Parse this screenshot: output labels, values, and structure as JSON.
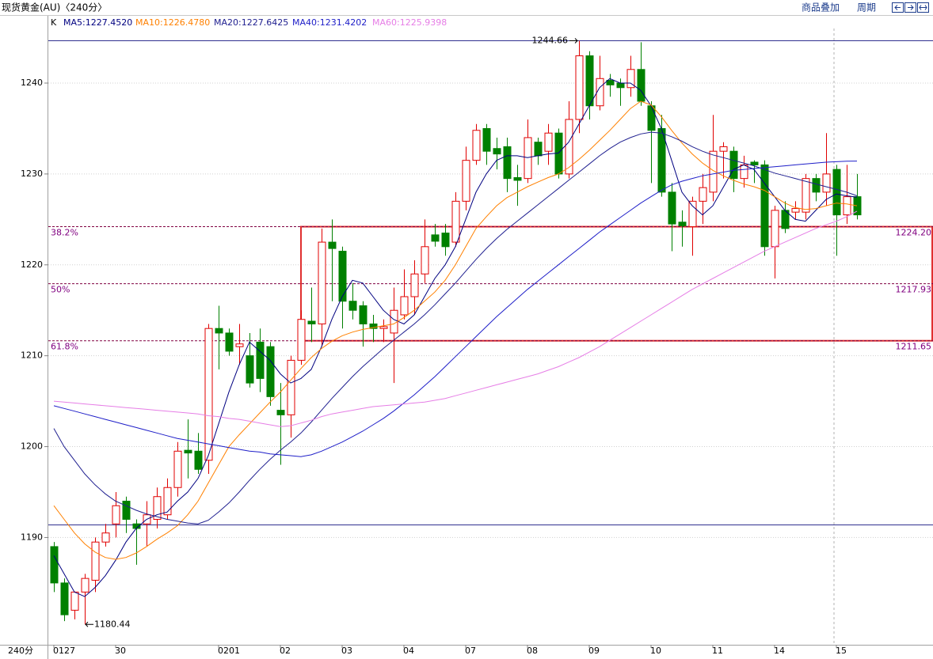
{
  "header": {
    "title": "现货黄金(AU)〈240分〉",
    "links": [
      "商品叠加",
      "周期"
    ]
  },
  "chart_data": {
    "type": "candlestick",
    "legend_prefix": "K",
    "period_label": "240分",
    "categories": [
      "0127",
      null,
      null,
      null,
      null,
      null,
      "30",
      null,
      null,
      null,
      null,
      null,
      null,
      null,
      null,
      null,
      "0201",
      null,
      null,
      null,
      null,
      null,
      "02",
      null,
      null,
      null,
      null,
      null,
      "03",
      null,
      null,
      null,
      null,
      null,
      "04",
      null,
      null,
      null,
      null,
      null,
      "07",
      null,
      null,
      null,
      null,
      null,
      "08",
      null,
      null,
      null,
      null,
      null,
      "09",
      null,
      null,
      null,
      null,
      null,
      "10",
      null,
      null,
      null,
      null,
      null,
      "11",
      null,
      null,
      null,
      null,
      null,
      "14",
      null,
      null,
      null,
      null,
      null,
      "15",
      null,
      null
    ],
    "open": [
      1189,
      1185,
      1182,
      1184,
      1185.3,
      1189.5,
      1191.5,
      1194,
      1191.5,
      1191.5,
      1192,
      1192.5,
      1195.5,
      1199.6,
      1199.5,
      1198.5,
      1213,
      1212.5,
      1211,
      1210,
      1211.5,
      1211,
      1204,
      1203.5,
      1209.5,
      1213.8,
      1213.5,
      1222.5,
      1221.5,
      1216,
      1215.5,
      1213.5,
      1213,
      1212.5,
      1214.5,
      1216.5,
      1219,
      1223.3,
      1223.5,
      1222.5,
      1227,
      1231.5,
      1235,
      1232.8,
      1233,
      1229.6,
      1229.5,
      1233.5,
      1232.5,
      1234.5,
      1230,
      1236,
      1243,
      1237.5,
      1240.3,
      1240,
      1239.5,
      1241.5,
      1237.5,
      1235,
      1228,
      1224.7,
      1224.2,
      1227,
      1228,
      1232.5,
      1232.5,
      1229.5,
      1231.3,
      1231,
      1222,
      1226,
      1225.8,
      1225.8,
      1229.5,
      1228,
      1230.5,
      1225.5,
      1227.5
    ],
    "high": [
      1189.5,
      1185.5,
      1184,
      1186,
      1190,
      1191.5,
      1195,
      1194.5,
      1192,
      1194,
      1195.5,
      1196.5,
      1200.5,
      1203,
      1201.5,
      1213.5,
      1215.5,
      1213,
      1213.5,
      1212.5,
      1213,
      1211.5,
      1207,
      1210,
      1215,
      1217.5,
      1224,
      1225,
      1222,
      1218,
      1216,
      1214.5,
      1214,
      1217.5,
      1219.5,
      1220.5,
      1225,
      1224.5,
      1224.5,
      1228,
      1233,
      1235.5,
      1235.5,
      1234,
      1234,
      1231,
      1236,
      1234,
      1235.5,
      1235,
      1238,
      1244.66,
      1243.5,
      1243,
      1241,
      1240.5,
      1243,
      1244.5,
      1238,
      1236.5,
      1229,
      1226,
      1227.5,
      1230,
      1236.5,
      1233.5,
      1233,
      1232,
      1231.5,
      1231.5,
      1226.5,
      1227,
      1227,
      1230,
      1230,
      1234.5,
      1231,
      1231,
      1230
    ],
    "low": [
      1184,
      1180.8,
      1181,
      1180.44,
      1184,
      1189,
      1190,
      1190.5,
      1187,
      1189,
      1191,
      1192,
      1194.5,
      1196.5,
      1197,
      1197,
      1208.5,
      1210,
      1209,
      1206.5,
      1206,
      1204.5,
      1198,
      1201,
      1209,
      1211.5,
      1211,
      1216,
      1213,
      1214,
      1211,
      1211.5,
      1211.5,
      1207,
      1214,
      1214.5,
      1218,
      1222,
      1221,
      1222,
      1226,
      1231,
      1231,
      1230.5,
      1228,
      1226.5,
      1229,
      1231,
      1231,
      1229.5,
      1229.5,
      1234.5,
      1236,
      1237,
      1238.5,
      1237.5,
      1238.5,
      1237.5,
      1229,
      1227.5,
      1221.5,
      1222,
      1221,
      1224.5,
      1227,
      1229.5,
      1228,
      1228.5,
      1229,
      1221,
      1218.5,
      1223.5,
      1225,
      1225,
      1227,
      1226.5,
      1221,
      1224.5,
      1225
    ],
    "close": [
      1185,
      1181.5,
      1184,
      1185.5,
      1189.5,
      1190.5,
      1193.5,
      1192,
      1191,
      1192.5,
      1194.5,
      1195.5,
      1199.5,
      1199.3,
      1197.5,
      1213,
      1212.5,
      1210.5,
      1211.3,
      1207,
      1207.5,
      1205.5,
      1203.5,
      1209.5,
      1214,
      1213.5,
      1222.5,
      1221.8,
      1216,
      1215,
      1213.5,
      1213,
      1213.2,
      1215,
      1216.5,
      1219,
      1222,
      1222.6,
      1222,
      1227,
      1231.5,
      1234.8,
      1232.5,
      1232.2,
      1229.5,
      1229.3,
      1234,
      1232,
      1234.5,
      1230,
      1236,
      1243,
      1237.5,
      1240.5,
      1239.8,
      1239.5,
      1241.5,
      1238,
      1234.8,
      1228,
      1224.5,
      1224.3,
      1227,
      1228.5,
      1232.5,
      1233,
      1229.5,
      1231,
      1231,
      1222,
      1226,
      1224,
      1226.2,
      1229.5,
      1228,
      1230,
      1225.5,
      1227.5,
      1225.5
    ],
    "up_color": "#e00000",
    "down_color": "#008000",
    "series": [
      {
        "name": "MA5:1227.4520",
        "color": "#000080",
        "values": [
          1188,
          1186,
          1184,
          1183.5,
          1184.5,
          1185.8,
          1187.5,
          1189.5,
          1191,
          1192,
          1192.5,
          1192.8,
          1194,
          1195,
          1196.5,
          1199,
          1202.5,
          1206,
          1209,
          1211.5,
          1210.5,
          1209.5,
          1208,
          1207,
          1207.5,
          1208.5,
          1211,
          1214,
          1216.5,
          1218.3,
          1218,
          1216.5,
          1215,
          1214,
          1213.5,
          1214.5,
          1216.5,
          1218.5,
          1220,
          1222,
          1225,
          1228,
          1230,
          1231.5,
          1232,
          1232,
          1231.8,
          1232,
          1232.2,
          1232.3,
          1233.5,
          1235.5,
          1237.5,
          1239.5,
          1240.5,
          1240,
          1240,
          1239.2,
          1237.5,
          1235,
          1231.5,
          1228,
          1226.5,
          1225.5,
          1226.5,
          1228.5,
          1230.5,
          1231,
          1230.5,
          1229,
          1227.5,
          1226,
          1225,
          1224.8,
          1226,
          1227.2,
          1227.8,
          1227.6,
          1227.45
        ]
      },
      {
        "name": "MA10:1226.4780",
        "color": "#ff8000",
        "values": [
          1193.5,
          1192,
          1190.5,
          1189.3,
          1188.4,
          1187.8,
          1187.6,
          1187.8,
          1188.3,
          1189,
          1189.8,
          1190.5,
          1191.3,
          1192.5,
          1194,
          1196,
          1198,
          1200,
          1201.3,
          1202.5,
          1203.7,
          1204.9,
          1206,
          1207.3,
          1208.6,
          1209.8,
          1210.8,
          1211.6,
          1212.2,
          1212.6,
          1212.9,
          1213.1,
          1213.3,
          1213.5,
          1214.2,
          1215,
          1216,
          1217,
          1218.3,
          1220,
          1222,
          1224,
          1225.3,
          1226.5,
          1227.4,
          1228,
          1228.6,
          1229.1,
          1229.6,
          1230,
          1230.7,
          1231.6,
          1232.6,
          1233.7,
          1234.8,
          1236,
          1237.2,
          1238,
          1237.6,
          1236.3,
          1234.8,
          1233.4,
          1232.2,
          1231.2,
          1230.4,
          1229.8,
          1229.3,
          1228.9,
          1228.6,
          1228.2,
          1227.5,
          1226.8,
          1226.3,
          1226.1,
          1226.2,
          1226.5,
          1226.8,
          1226.7,
          1226.5
        ]
      },
      {
        "name": "MA20:1227.6425",
        "color": "#202090",
        "values": [
          1202,
          1200,
          1198.5,
          1197,
          1195.8,
          1194.8,
          1194,
          1193.5,
          1193,
          1192.6,
          1192.3,
          1192,
          1191.8,
          1191.6,
          1191.5,
          1191.9,
          1192.8,
          1193.8,
          1195,
          1196.3,
          1197.5,
          1198.6,
          1199.6,
          1200.5,
          1201.5,
          1202.7,
          1204,
          1205.3,
          1206.5,
          1207.7,
          1208.8,
          1209.8,
          1210.8,
          1211.7,
          1212.6,
          1213.5,
          1214.5,
          1215.6,
          1216.8,
          1218,
          1219.3,
          1220.6,
          1221.8,
          1222.9,
          1223.9,
          1224.8,
          1225.7,
          1226.6,
          1227.5,
          1228.4,
          1229.3,
          1230.2,
          1231.1,
          1232,
          1232.8,
          1233.5,
          1234,
          1234.4,
          1234.6,
          1234.5,
          1234.1,
          1233.6,
          1233,
          1232.5,
          1232.1,
          1231.8,
          1231.5,
          1231.2,
          1230.9,
          1230.5,
          1230.1,
          1229.8,
          1229.5,
          1229.2,
          1228.9,
          1228.6,
          1228.3,
          1228,
          1227.6
        ]
      },
      {
        "name": "MA40:1231.4202",
        "color": "#1e1ec8",
        "values": [
          1204.5,
          1204.2,
          1203.9,
          1203.6,
          1203.3,
          1203,
          1202.7,
          1202.4,
          1202.1,
          1201.8,
          1201.5,
          1201.2,
          1200.9,
          1200.7,
          1200.5,
          1200.3,
          1200.1,
          1199.9,
          1199.7,
          1199.5,
          1199.4,
          1199.2,
          1199.1,
          1199,
          1198.9,
          1199.1,
          1199.5,
          1200,
          1200.5,
          1201.1,
          1201.7,
          1202.4,
          1203.1,
          1203.9,
          1204.8,
          1205.7,
          1206.7,
          1207.7,
          1208.8,
          1209.9,
          1211,
          1212.1,
          1213.2,
          1214.3,
          1215.3,
          1216.3,
          1217.3,
          1218.2,
          1219.1,
          1220,
          1220.9,
          1221.8,
          1222.7,
          1223.6,
          1224.4,
          1225.2,
          1226,
          1226.8,
          1227.5,
          1228.2,
          1228.8,
          1229.2,
          1229.5,
          1229.8,
          1230,
          1230.2,
          1230.4,
          1230.5,
          1230.6,
          1230.7,
          1230.8,
          1230.9,
          1231,
          1231.1,
          1231.2,
          1231.3,
          1231.35,
          1231.4,
          1231.42
        ]
      },
      {
        "name": "MA60:1225.9398",
        "color": "#e67ee6",
        "values": [
          1205,
          1204.9,
          1204.8,
          1204.7,
          1204.6,
          1204.5,
          1204.4,
          1204.3,
          1204.2,
          1204.1,
          1204,
          1203.9,
          1203.8,
          1203.7,
          1203.6,
          1203.4,
          1203.3,
          1203.1,
          1203,
          1202.8,
          1202.6,
          1202.4,
          1202.2,
          1202.3,
          1202.6,
          1202.9,
          1203.3,
          1203.6,
          1203.8,
          1204,
          1204.2,
          1204.4,
          1204.5,
          1204.6,
          1204.7,
          1204.8,
          1204.9,
          1205.1,
          1205.3,
          1205.6,
          1205.9,
          1206.2,
          1206.5,
          1206.8,
          1207.1,
          1207.4,
          1207.7,
          1208,
          1208.4,
          1208.8,
          1209.3,
          1209.8,
          1210.4,
          1211,
          1211.7,
          1212.4,
          1213.1,
          1213.8,
          1214.5,
          1215.2,
          1215.9,
          1216.6,
          1217.3,
          1217.9,
          1218.5,
          1219.1,
          1219.7,
          1220.3,
          1220.9,
          1221.5,
          1222,
          1222.5,
          1223,
          1223.5,
          1224,
          1224.4,
          1224.8,
          1225.3,
          1225.9
        ]
      }
    ],
    "hlines": [
      1244.66,
      1191.4
    ],
    "max_label": "1244.66",
    "min_label": "1180.44",
    "fib_levels": [
      {
        "label": "38.2%",
        "value": 1224.2,
        "value_label": "1224.20"
      },
      {
        "label": "50%",
        "value": 1217.93,
        "value_label": "1217.93"
      },
      {
        "label": "61.8%",
        "value": 1211.65,
        "value_label": "1211.65"
      }
    ],
    "ylim": [
      1178.2,
      1247.4
    ],
    "yticks": [
      1190,
      1200,
      1210,
      1220,
      1230,
      1240
    ],
    "grid": true
  }
}
